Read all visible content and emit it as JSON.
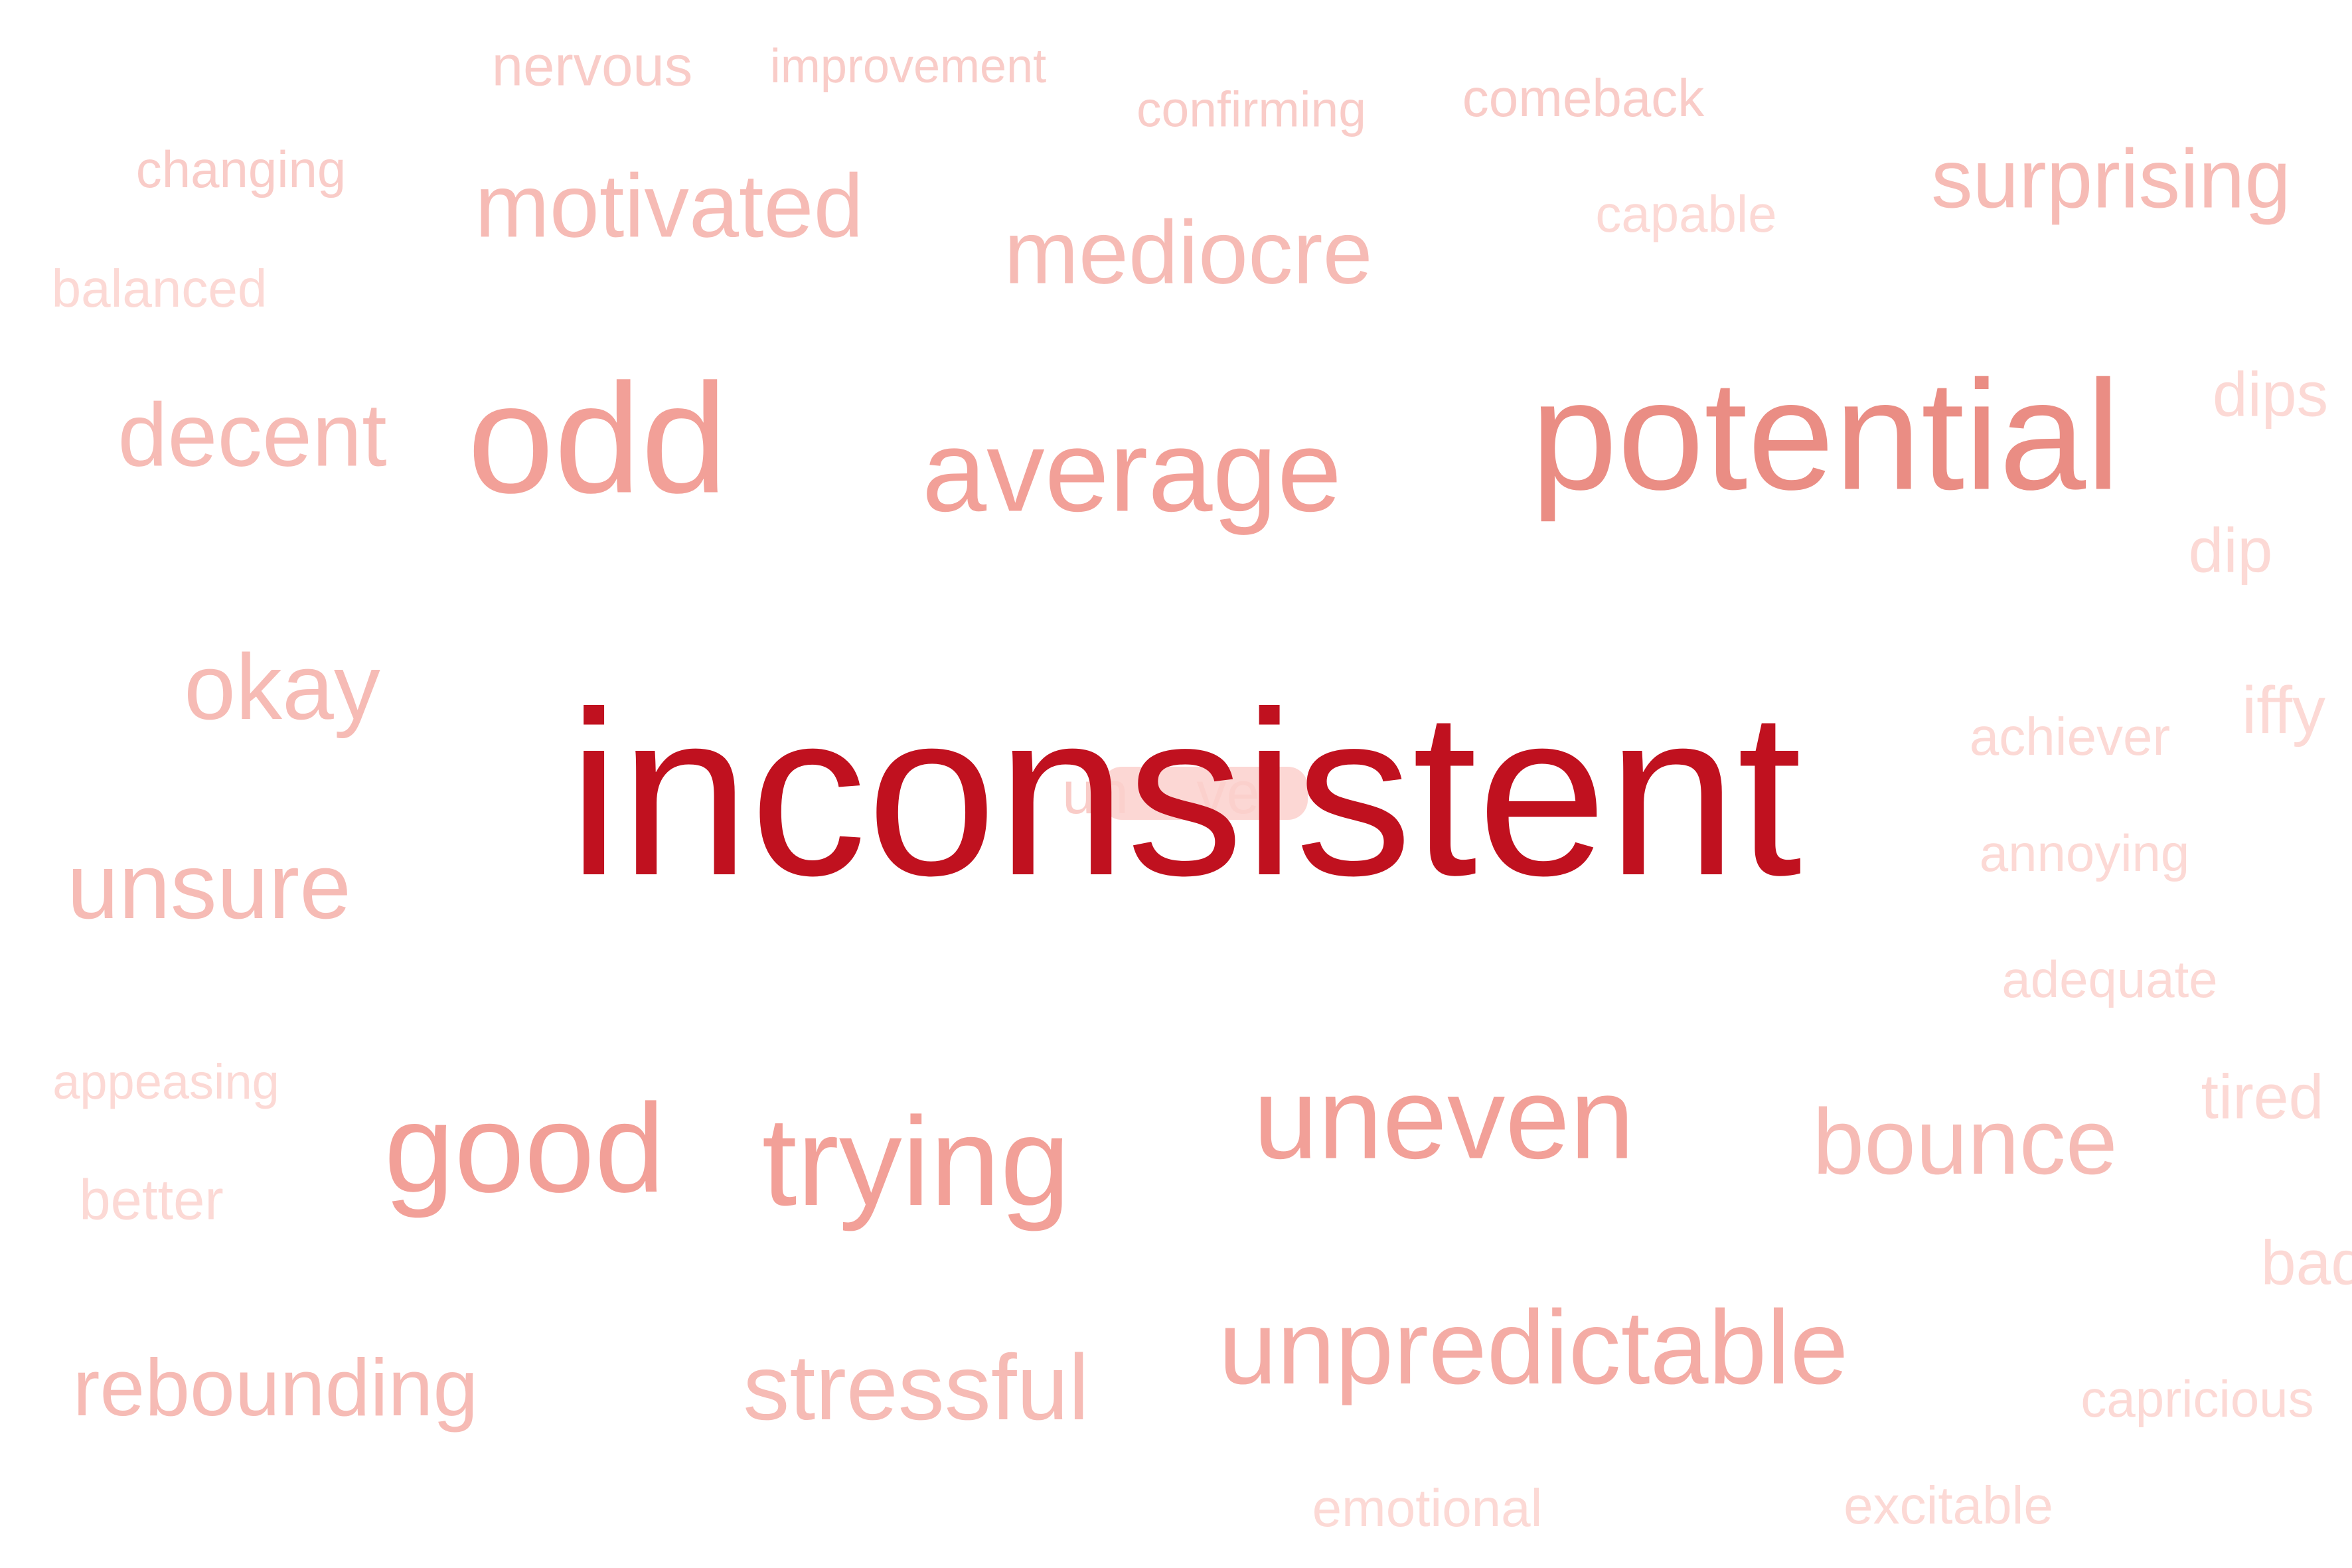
{
  "words": {
    "inconsistent": "inconsistent",
    "potential": "potential",
    "odd": "odd",
    "average": "average",
    "uneven": "uneven",
    "good": "good",
    "trying": "trying",
    "unpredictable": "unpredictable",
    "bounce": "bounce",
    "motivated": "motivated",
    "mediocre": "mediocre",
    "surprising": "surprising",
    "decent": "decent",
    "okay": "okay",
    "unsure": "unsure",
    "rebounding": "rebounding",
    "stressful": "stressful",
    "nervous": "nervous",
    "improvement": "improvement",
    "confirming": "confirming",
    "comeback": "comeback",
    "changing": "changing",
    "capable": "capable",
    "balanced": "balanced",
    "dips": "dips",
    "dip": "dip",
    "iffy": "iffy",
    "achiever": "achiever",
    "annoying": "annoying",
    "adequate": "adequate",
    "appeasing": "appeasing",
    "better": "better",
    "tired": "tired",
    "bad": "bad",
    "capricious": "capricious",
    "emotional": "emotional",
    "excitable": "excitable"
  },
  "overlapping_fragments": {
    "left": "un",
    "right": "ve"
  },
  "colors": {
    "primary": "#c0111f",
    "light": "#f6bbb5",
    "background": "#ffffff"
  }
}
